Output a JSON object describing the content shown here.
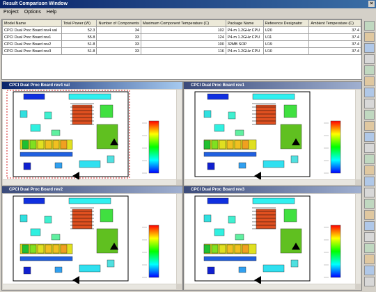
{
  "window": {
    "title": "Result Comparison Window"
  },
  "menu": [
    "Project",
    "Options",
    "Help"
  ],
  "table": {
    "headers": [
      "Model Name",
      "Total Power (W)",
      "Number of Components",
      "Maximum Component Temperature (C)",
      "Package Name",
      "Reference Designator",
      "Ambient Temperature (C)"
    ],
    "rows": [
      [
        "CPCI Dual Proc Board rev4 val",
        52.3,
        34,
        102,
        "P4-m 1.2GHz CPU",
        "U20",
        37.4
      ],
      [
        "CPCI Dual Proc Board rev1",
        55.8,
        33,
        124,
        "P4-m 1.2GHz CPU",
        "U11",
        37.4
      ],
      [
        "CPCI Dual Proc Board rev2",
        51.8,
        33,
        100,
        "32MB SOP",
        "U19",
        37.4
      ],
      [
        "CPCI Dual Proc Board rev3",
        51.8,
        33,
        116,
        "P4-m 1.2GHz CPU",
        "U10",
        37.4
      ]
    ]
  },
  "panels": [
    {
      "title": "CPCI Dual Proc Board rev4 val"
    },
    {
      "title": "CPCI Dual Proc Board rev1"
    },
    {
      "title": "CPCI Dual Proc Board rev2"
    },
    {
      "title": "CPCI Dual Proc Board rev3"
    }
  ]
}
